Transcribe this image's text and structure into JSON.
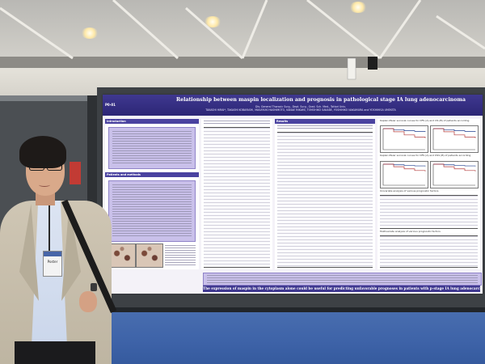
{
  "poster": {
    "id_label": "P0-01",
    "title": "Relationship between maspin localization and prognosis in pathological stage IA lung adenocarcinoma",
    "authors": "TAKASHI HIRAI*, TAKASHI KOBAYASHI, MASAYUKI HASHIMOTO, KANAE MIKAMI, TOMOHIKO SAKABE, YOSHIHIKO NAKAMURA and YOSHIHISA UMEKITA",
    "affiliation": "Div. General Thoracic Surg., Dept. Surg., Grad. Sch. Med., Tottori Univ.",
    "section_results": "Results",
    "section_methods": "Patients and methods",
    "section_intro": "Introduction",
    "km_caption_1": "Kaplan-Meier survival curves for DFS (A) and OS (B) of patients according",
    "km_caption_2": "Kaplan-Meier survival curves for DFS (A) and DSS (B) of patients according",
    "multivariate": "Univariate analysis of various prognostic factors",
    "multivariate_2": "Multivariate analysis of various prognostic factors",
    "conclusion": "The expression of maspin in the cytoplasm alone could be useful for predicting unfavorable prognoses in patients with p-stage IA lung adenocarcinoma"
  },
  "badge": {
    "label": "Poster"
  },
  "colors": {
    "poster_header": "#2c2675",
    "purple_box": "#c9c0ea",
    "floor": "#3e63a8",
    "board": "#3d4145"
  },
  "chart_data": [
    {
      "type": "line",
      "series": [
        {
          "values": [
            1.0,
            0.95,
            0.9,
            0.87,
            0.85
          ]
        },
        {
          "values": [
            1.0,
            0.85,
            0.7,
            0.6,
            0.55
          ]
        }
      ],
      "x": [
        0,
        1,
        2,
        3,
        4
      ],
      "ylim": [
        0,
        1
      ]
    },
    {
      "type": "line",
      "series": [
        {
          "values": [
            1.0,
            0.97,
            0.94,
            0.92,
            0.9
          ]
        },
        {
          "values": [
            1.0,
            0.88,
            0.78,
            0.7,
            0.66
          ]
        }
      ],
      "x": [
        0,
        1,
        2,
        3,
        4
      ],
      "ylim": [
        0,
        1
      ]
    }
  ]
}
